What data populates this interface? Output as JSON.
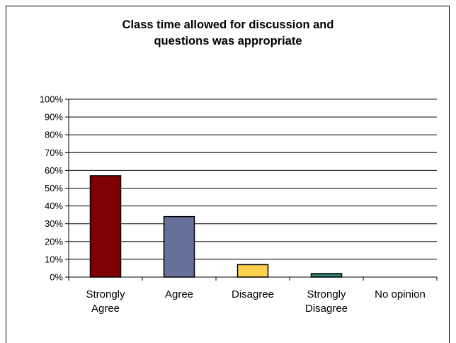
{
  "chart_data": {
    "type": "bar",
    "title_lines": [
      "Class time allowed for discussion and",
      "questions was appropriate"
    ],
    "categories": [
      [
        "Strongly",
        "Agree"
      ],
      [
        "Agree"
      ],
      [
        "Disagree"
      ],
      [
        "Strongly",
        "Disagree"
      ],
      [
        "No opinion"
      ]
    ],
    "values": [
      57,
      34,
      7,
      2,
      0
    ],
    "colors": [
      "#7f0000",
      "#66709a",
      "#ffd24d",
      "#2f8070",
      "#999999"
    ],
    "ylim": [
      0,
      100
    ],
    "yticks": [
      "0%",
      "10%",
      "20%",
      "30%",
      "40%",
      "50%",
      "60%",
      "70%",
      "80%",
      "90%",
      "100%"
    ],
    "grid": true,
    "xlabel": "",
    "ylabel": ""
  }
}
